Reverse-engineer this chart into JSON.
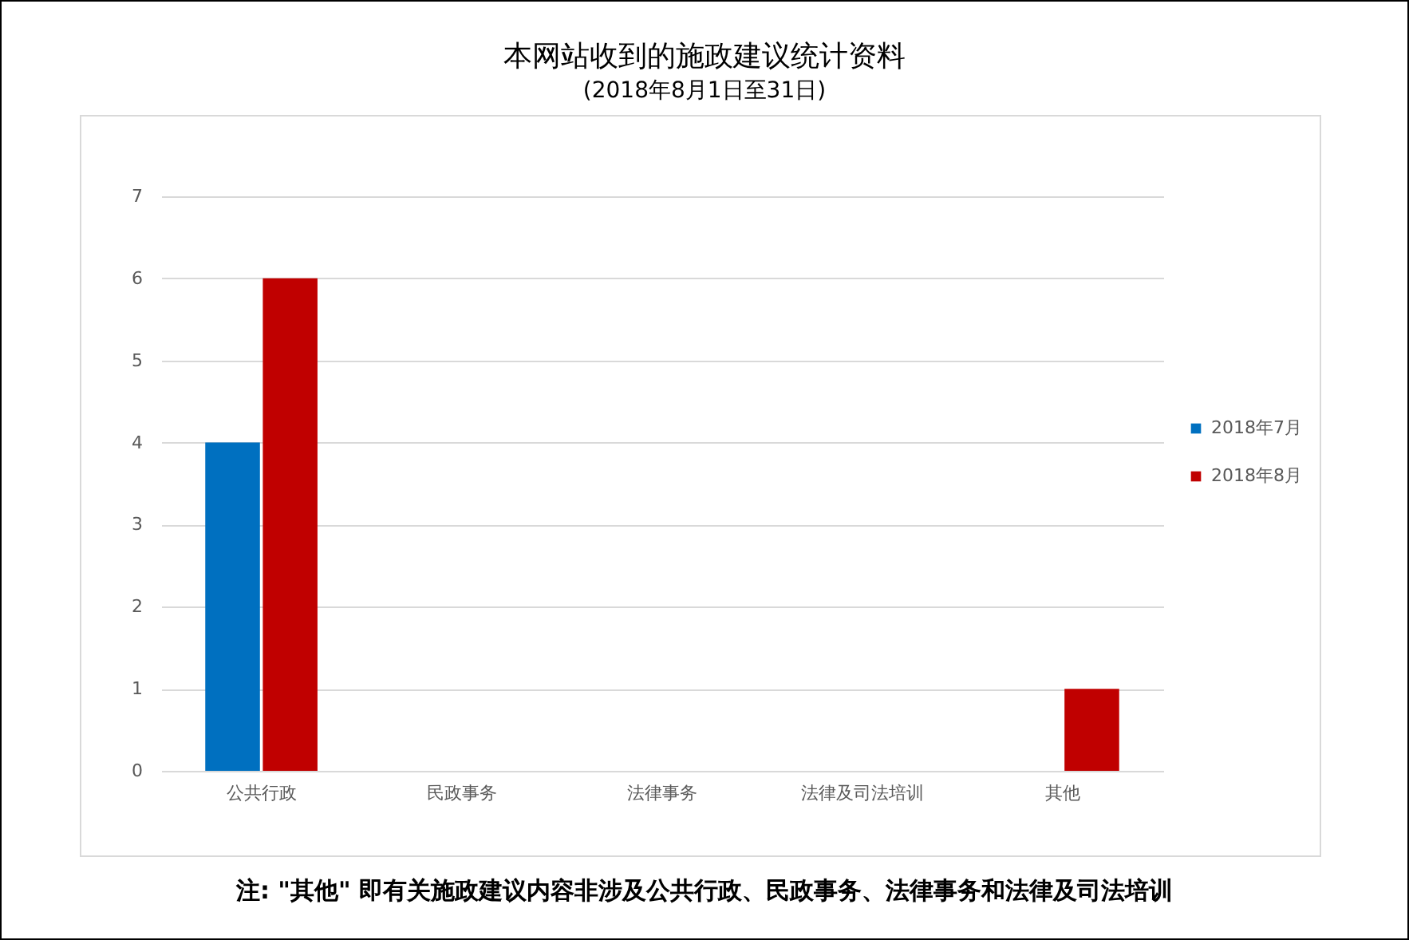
{
  "chart_data": {
    "type": "bar",
    "title": "本网站收到的施政建议统计资料",
    "subtitle": "(2018年8月1日至31日)",
    "categories": [
      "公共行政",
      "民政事务",
      "法律事务",
      "法律及司法培训",
      "其他"
    ],
    "series": [
      {
        "name": "2018年7月",
        "color": "#0070c0",
        "values": [
          4,
          0,
          0,
          0,
          0
        ]
      },
      {
        "name": "2018年8月",
        "color": "#c00000",
        "values": [
          6,
          0,
          0,
          0,
          1
        ]
      }
    ],
    "ylim": [
      0,
      7
    ],
    "yticks": [
      0,
      1,
      2,
      3,
      4,
      5,
      6,
      7
    ],
    "grid": "y",
    "legend": "right",
    "annotations": [
      "注: \"其他\" 即有关施政建议内容非涉及公共行政、民政事务、法律事务和法律及司法培训"
    ]
  }
}
